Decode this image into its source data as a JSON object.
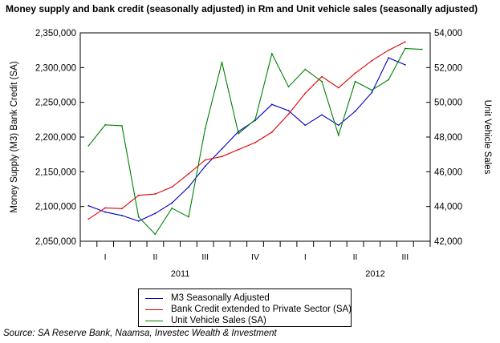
{
  "title": "Money supply and bank credit (seasonally adjusted) in Rm and Unit vehicle sales (seasonally adjusted)",
  "source": "Source: SA Reserve Bank, Naamsa, Investec Wealth & Investment",
  "colors": {
    "m3": "#0000c0",
    "credit": "#e00000",
    "vehicles": "#008000",
    "axis": "#000000"
  },
  "chart_data": {
    "type": "line",
    "x": [
      "2011-01",
      "2011-02",
      "2011-03",
      "2011-04",
      "2011-05",
      "2011-06",
      "2011-07",
      "2011-08",
      "2011-09",
      "2011-10",
      "2011-11",
      "2011-12",
      "2012-01",
      "2012-02",
      "2012-03",
      "2012-04",
      "2012-05",
      "2012-06",
      "2012-07",
      "2012-08",
      "2012-09"
    ],
    "quarter_labels": [
      "I",
      "II",
      "III",
      "IV",
      "I",
      "II",
      "III"
    ],
    "year_labels": [
      "2011",
      "2012"
    ],
    "xlabel": "",
    "ylabel_left": "Money Supply (M3) Bank Credit (SA)",
    "ylabel_right": "Unit Vehicle Sales",
    "ylim_left": [
      2050000,
      2350000
    ],
    "ylim_right": [
      42000,
      54000
    ],
    "yticks_left": [
      "2,050,000",
      "2,100,000",
      "2,150,000",
      "2,200,000",
      "2,250,000",
      "2,300,000",
      "2,350,000"
    ],
    "yticks_right": [
      "42,000",
      "44,000",
      "46,000",
      "48,000",
      "50,000",
      "52,000",
      "54,000"
    ],
    "grid": false,
    "legend_position": "bottom",
    "series": [
      {
        "name": "M3 Seasonally Adjusted",
        "axis": "left",
        "color": "#0000c0",
        "values": [
          2101000,
          2092000,
          2087000,
          2079000,
          2090000,
          2105000,
          2128000,
          2158000,
          2183000,
          2208000,
          2224000,
          2247000,
          2238000,
          2217000,
          2232000,
          2217000,
          2237000,
          2264000,
          2314000,
          2304000,
          null
        ]
      },
      {
        "name": "Bank Credit extended to Private Sector (SA)",
        "axis": "left",
        "color": "#e00000",
        "values": [
          2082000,
          2098000,
          2097000,
          2116000,
          2118000,
          2128000,
          2147000,
          2167000,
          2172000,
          2182000,
          2192000,
          2207000,
          2233000,
          2263000,
          2287000,
          2271000,
          2292000,
          2310000,
          2325000,
          2337000,
          null
        ]
      },
      {
        "name": "Unit Vehicle Sales (SA)",
        "axis": "right",
        "color": "#008000",
        "values": [
          47500,
          48700,
          48650,
          43400,
          42400,
          43900,
          43400,
          48500,
          52300,
          48200,
          49000,
          52800,
          50900,
          51900,
          51200,
          48100,
          51200,
          50700,
          51300,
          53100,
          53050
        ]
      }
    ]
  }
}
